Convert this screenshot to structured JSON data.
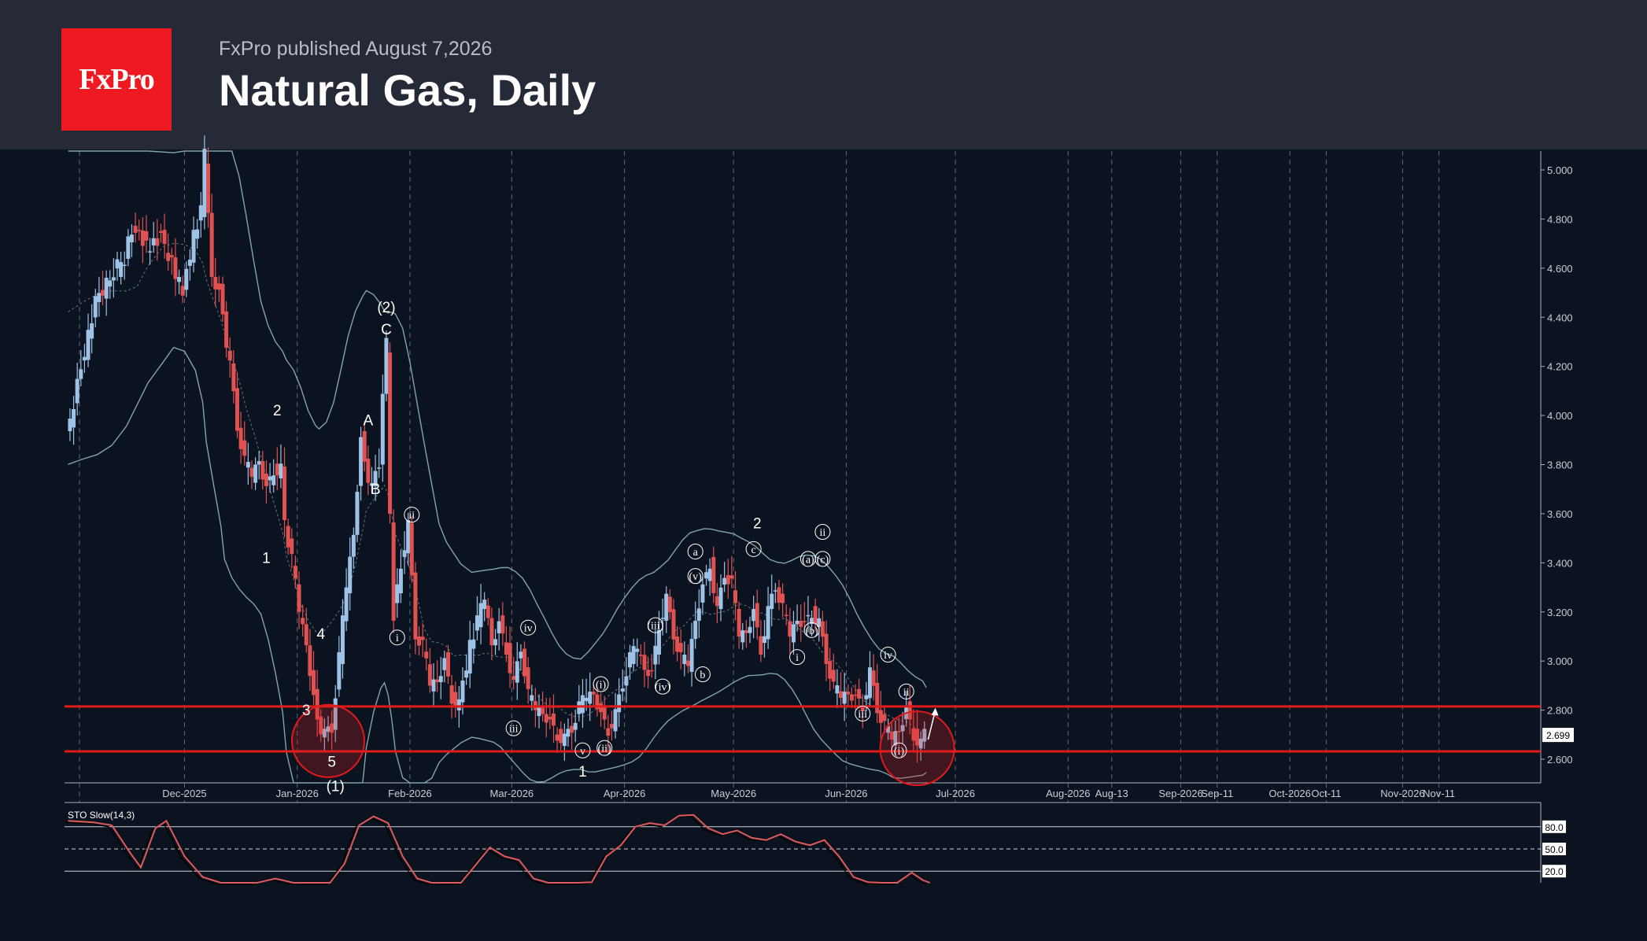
{
  "header": {
    "logo_text": "FxPro",
    "published": "FxPro published August 7,2026",
    "title": "Natural Gas, Daily"
  },
  "colors": {
    "up": "#9ec3e6",
    "down": "#e05252",
    "level": "#e01b1b",
    "band": "#7fa6a8",
    "stoch": "#e05a5a",
    "grid": "#9aa0aa"
  },
  "chart_data": {
    "type": "candlestick",
    "y_axis": {
      "min": 2.4,
      "max": 5.05,
      "ticks": [
        "5.000",
        "4.800",
        "4.600",
        "4.400",
        "4.200",
        "4.000",
        "3.800",
        "3.600",
        "3.400",
        "3.200",
        "3.000",
        "2.800",
        "2.600"
      ]
    },
    "current_price": "2.699",
    "x_labels": [
      {
        "label": "Dec-2025",
        "day": 0
      },
      {
        "label": "Jan-2026",
        "day": 31
      },
      {
        "label": "Feb-2026",
        "day": 62
      },
      {
        "label": "Mar-2026",
        "day": 90
      },
      {
        "label": "Apr-2026",
        "day": 121
      },
      {
        "label": "May-2026",
        "day": 151
      },
      {
        "label": "Jun-2026",
        "day": 182
      },
      {
        "label": "Jul-2026",
        "day": 212
      },
      {
        "label": "Aug-2026",
        "day": 243
      },
      {
        "label": "Aug-13",
        "day": 255
      },
      {
        "label": "Sep-2026",
        "day": 274
      },
      {
        "label": "Sep-11",
        "day": 284
      },
      {
        "label": "Oct-2026",
        "day": 304
      },
      {
        "label": "Oct-11",
        "day": 314
      },
      {
        "label": "Nov-2026",
        "day": 335
      },
      {
        "label": "Nov-11",
        "day": 345
      }
    ],
    "x_range": [
      -33,
      373
    ],
    "price_path": [
      [
        -32,
        3.9
      ],
      [
        -28,
        4.2
      ],
      [
        -24,
        4.45
      ],
      [
        -20,
        4.55
      ],
      [
        -16,
        4.65
      ],
      [
        -13,
        4.78
      ],
      [
        -10,
        4.7
      ],
      [
        -6,
        4.72
      ],
      [
        -3,
        4.62
      ],
      [
        0,
        4.5
      ],
      [
        3,
        4.72
      ],
      [
        5,
        4.82
      ],
      [
        6,
        5.05
      ],
      [
        8,
        4.6
      ],
      [
        10,
        4.5
      ],
      [
        11,
        4.4
      ],
      [
        13,
        4.2
      ],
      [
        15,
        3.95
      ],
      [
        17,
        3.8
      ],
      [
        19,
        3.75
      ],
      [
        21,
        3.85
      ],
      [
        23,
        3.7
      ],
      [
        25,
        3.78
      ],
      [
        27,
        3.78
      ],
      [
        28,
        3.55
      ],
      [
        30,
        3.4
      ],
      [
        32,
        3.2
      ],
      [
        34,
        3.1
      ],
      [
        36,
        2.85
      ],
      [
        37,
        2.75
      ],
      [
        39,
        2.7
      ],
      [
        41,
        2.72
      ],
      [
        43,
        3.0
      ],
      [
        45,
        3.3
      ],
      [
        47,
        3.55
      ],
      [
        49,
        3.9
      ],
      [
        50,
        3.8
      ],
      [
        52,
        3.7
      ],
      [
        54,
        3.8
      ],
      [
        55,
        4.1
      ],
      [
        56,
        4.28
      ],
      [
        57,
        3.6
      ],
      [
        58,
        3.2
      ],
      [
        60,
        3.4
      ],
      [
        62,
        3.55
      ],
      [
        64,
        3.1
      ],
      [
        66,
        3.05
      ],
      [
        68,
        2.9
      ],
      [
        70,
        2.95
      ],
      [
        72,
        3.0
      ],
      [
        74,
        2.85
      ],
      [
        76,
        2.82
      ],
      [
        79,
        3.05
      ],
      [
        81,
        3.15
      ],
      [
        83,
        3.25
      ],
      [
        85,
        3.1
      ],
      [
        87,
        3.15
      ],
      [
        89,
        3.05
      ],
      [
        91,
        2.9
      ],
      [
        93,
        3.05
      ],
      [
        95,
        2.85
      ],
      [
        97,
        2.8
      ],
      [
        99,
        2.82
      ],
      [
        101,
        2.75
      ],
      [
        103,
        2.7
      ],
      [
        105,
        2.68
      ],
      [
        107,
        2.72
      ],
      [
        109,
        2.8
      ],
      [
        111,
        2.85
      ],
      [
        113,
        2.9
      ],
      [
        115,
        2.78
      ],
      [
        117,
        2.72
      ],
      [
        119,
        2.78
      ],
      [
        121,
        2.9
      ],
      [
        123,
        3.0
      ],
      [
        125,
        3.05
      ],
      [
        127,
        3.0
      ],
      [
        129,
        2.95
      ],
      [
        131,
        3.15
      ],
      [
        133,
        3.25
      ],
      [
        135,
        3.1
      ],
      [
        137,
        3.0
      ],
      [
        139,
        2.98
      ],
      [
        141,
        3.2
      ],
      [
        143,
        3.3
      ],
      [
        145,
        3.4
      ],
      [
        147,
        3.2
      ],
      [
        149,
        3.35
      ],
      [
        151,
        3.3
      ],
      [
        153,
        3.1
      ],
      [
        155,
        3.15
      ],
      [
        157,
        3.2
      ],
      [
        159,
        3.05
      ],
      [
        161,
        3.2
      ],
      [
        163,
        3.3
      ],
      [
        165,
        3.2
      ],
      [
        167,
        3.1
      ],
      [
        169,
        3.2
      ],
      [
        171,
        3.15
      ],
      [
        173,
        3.2
      ],
      [
        175,
        3.15
      ],
      [
        177,
        3.0
      ],
      [
        179,
        2.88
      ],
      [
        181,
        2.85
      ],
      [
        183,
        2.9
      ],
      [
        185,
        2.85
      ],
      [
        187,
        2.82
      ],
      [
        189,
        2.95
      ],
      [
        191,
        2.8
      ],
      [
        193,
        2.72
      ],
      [
        195,
        2.68
      ],
      [
        197,
        2.75
      ],
      [
        199,
        2.8
      ],
      [
        201,
        2.7
      ],
      [
        203,
        2.66
      ],
      [
        204,
        2.7
      ]
    ],
    "support_levels": [
      2.815,
      2.632
    ],
    "circles": [
      {
        "day": 39,
        "price": 2.7,
        "r": 46
      },
      {
        "day": 201,
        "price": 2.67,
        "r": 47
      }
    ],
    "wave_labels": [
      {
        "text": "2",
        "day": 25,
        "price": 4.0,
        "style": "plain"
      },
      {
        "text": "1",
        "day": 22,
        "price": 3.4,
        "style": "plain"
      },
      {
        "text": "4",
        "day": 37,
        "price": 3.09,
        "style": "plain"
      },
      {
        "text": "3",
        "day": 33,
        "price": 2.78,
        "style": "plain"
      },
      {
        "text": "5",
        "day": 40,
        "price": 2.57,
        "style": "plain"
      },
      {
        "text": "(1)",
        "day": 41,
        "price": 2.47,
        "style": "plain"
      },
      {
        "text": "A",
        "day": 50,
        "price": 3.96,
        "style": "plain"
      },
      {
        "text": "B",
        "day": 52,
        "price": 3.68,
        "style": "plain"
      },
      {
        "text": "C",
        "day": 55,
        "price": 4.33,
        "style": "plain"
      },
      {
        "text": "(2)",
        "day": 55,
        "price": 4.42,
        "style": "plain"
      },
      {
        "text": "1",
        "day": 109,
        "price": 2.53,
        "style": "plain"
      },
      {
        "text": "2",
        "day": 157,
        "price": 3.54,
        "style": "plain"
      },
      {
        "text": "ii",
        "day": 62,
        "price": 3.58,
        "style": "circle"
      },
      {
        "text": "i",
        "day": 58,
        "price": 3.08,
        "style": "circle"
      },
      {
        "text": "iv",
        "day": 94,
        "price": 3.12,
        "style": "circle"
      },
      {
        "text": "iii",
        "day": 90,
        "price": 2.71,
        "style": "circle"
      },
      {
        "text": "v",
        "day": 109,
        "price": 2.62,
        "style": "circle"
      },
      {
        "text": "(ii)",
        "day": 115,
        "price": 2.63,
        "style": "circle"
      },
      {
        "text": "(i)",
        "day": 114,
        "price": 2.89,
        "style": "circle"
      },
      {
        "text": "(iii)",
        "day": 129,
        "price": 3.13,
        "style": "circle"
      },
      {
        "text": "(iv)",
        "day": 131,
        "price": 2.88,
        "style": "circle"
      },
      {
        "text": "(v)",
        "day": 140,
        "price": 3.33,
        "style": "circle"
      },
      {
        "text": "a",
        "day": 140,
        "price": 3.43,
        "style": "circle"
      },
      {
        "text": "b",
        "day": 142,
        "price": 2.93,
        "style": "circle"
      },
      {
        "text": "c",
        "day": 156,
        "price": 3.44,
        "style": "circle"
      },
      {
        "text": "(a)",
        "day": 171,
        "price": 3.4,
        "style": "circle"
      },
      {
        "text": "ii",
        "day": 175,
        "price": 3.51,
        "style": "circle"
      },
      {
        "text": "(c)",
        "day": 175,
        "price": 3.4,
        "style": "circle"
      },
      {
        "text": "(b)",
        "day": 172,
        "price": 3.11,
        "style": "circle"
      },
      {
        "text": "i",
        "day": 168,
        "price": 3.0,
        "style": "circle"
      },
      {
        "text": "iv",
        "day": 193,
        "price": 3.01,
        "style": "circle"
      },
      {
        "text": "iii",
        "day": 186,
        "price": 2.77,
        "style": "circle"
      },
      {
        "text": "ii",
        "day": 198,
        "price": 2.86,
        "style": "circle"
      },
      {
        "text": "(i)",
        "day": 196,
        "price": 2.62,
        "style": "circle"
      }
    ],
    "stochastic": {
      "label": "STO Slow(14,3)",
      "levels": [
        "80.0",
        "50.0",
        "20.0"
      ],
      "values": [
        [
          -32,
          88
        ],
        [
          -25,
          86
        ],
        [
          -20,
          82
        ],
        [
          -15,
          45
        ],
        [
          -12,
          25
        ],
        [
          -8,
          78
        ],
        [
          -5,
          88
        ],
        [
          0,
          40
        ],
        [
          5,
          12
        ],
        [
          10,
          3
        ],
        [
          15,
          2
        ],
        [
          20,
          4
        ],
        [
          25,
          10
        ],
        [
          30,
          4
        ],
        [
          35,
          2
        ],
        [
          40,
          3
        ],
        [
          44,
          30
        ],
        [
          48,
          82
        ],
        [
          52,
          94
        ],
        [
          56,
          85
        ],
        [
          60,
          40
        ],
        [
          64,
          10
        ],
        [
          68,
          4
        ],
        [
          72,
          2
        ],
        [
          76,
          4
        ],
        [
          80,
          28
        ],
        [
          84,
          52
        ],
        [
          88,
          40
        ],
        [
          92,
          35
        ],
        [
          96,
          10
        ],
        [
          100,
          4
        ],
        [
          104,
          2
        ],
        [
          108,
          3
        ],
        [
          112,
          5
        ],
        [
          116,
          40
        ],
        [
          120,
          55
        ],
        [
          124,
          80
        ],
        [
          128,
          85
        ],
        [
          132,
          82
        ],
        [
          136,
          95
        ],
        [
          140,
          96
        ],
        [
          144,
          78
        ],
        [
          148,
          70
        ],
        [
          152,
          75
        ],
        [
          156,
          65
        ],
        [
          160,
          62
        ],
        [
          164,
          70
        ],
        [
          168,
          60
        ],
        [
          172,
          55
        ],
        [
          176,
          62
        ],
        [
          180,
          40
        ],
        [
          184,
          12
        ],
        [
          188,
          5
        ],
        [
          192,
          4
        ],
        [
          196,
          3
        ],
        [
          200,
          18
        ],
        [
          203,
          8
        ],
        [
          205,
          2
        ]
      ]
    }
  }
}
